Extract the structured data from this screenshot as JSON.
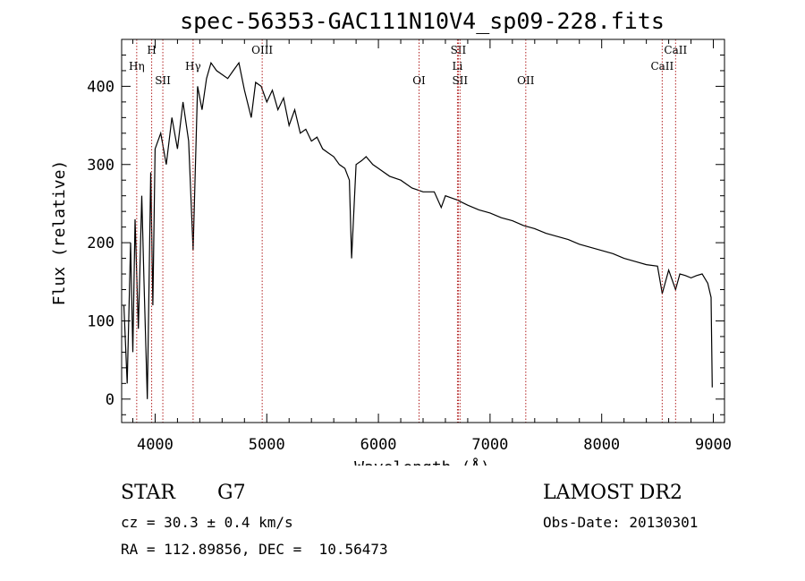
{
  "chart_data": {
    "type": "line",
    "title": "spec-56353-GAC111N10V4_sp09-228.fits",
    "xlabel": "Wavelength (Å)",
    "ylabel": "Flux (relative)",
    "xlim": [
      3700,
      9100
    ],
    "ylim": [
      -30,
      460
    ],
    "xticks": [
      4000,
      5000,
      6000,
      7000,
      8000,
      9000
    ],
    "yticks": [
      0,
      100,
      200,
      300,
      400
    ],
    "line_color": "#000000",
    "marker_color": "#b22222",
    "series": [
      {
        "x": [
          3720,
          3750,
          3780,
          3800,
          3820,
          3850,
          3880,
          3900,
          3930,
          3960,
          3980,
          4000,
          4050,
          4100,
          4150,
          4200,
          4250,
          4300,
          4340,
          4380,
          4420,
          4460,
          4500,
          4550,
          4600,
          4650,
          4700,
          4750,
          4800,
          4861,
          4900,
          4950,
          5000,
          5050,
          5100,
          5150,
          5200,
          5250,
          5300,
          5350,
          5400,
          5450,
          5500,
          5550,
          5600,
          5650,
          5700,
          5740,
          5760,
          5800,
          5850,
          5890,
          5950,
          6000,
          6100,
          6200,
          6300,
          6400,
          6500,
          6563,
          6600,
          6700,
          6800,
          6900,
          7000,
          7100,
          7200,
          7300,
          7400,
          7500,
          7600,
          7700,
          7800,
          7900,
          8000,
          8100,
          8200,
          8300,
          8400,
          8500,
          8542,
          8600,
          8662,
          8700,
          8750,
          8800,
          8850,
          8900,
          8950,
          8980,
          8990
        ],
        "y": [
          120,
          20,
          200,
          60,
          230,
          90,
          260,
          150,
          0,
          290,
          120,
          320,
          340,
          300,
          360,
          320,
          380,
          330,
          190,
          400,
          370,
          410,
          430,
          420,
          415,
          410,
          420,
          430,
          395,
          360,
          405,
          400,
          380,
          395,
          370,
          385,
          350,
          370,
          340,
          345,
          330,
          335,
          320,
          315,
          310,
          300,
          295,
          280,
          180,
          300,
          305,
          310,
          300,
          295,
          285,
          280,
          270,
          265,
          265,
          245,
          260,
          255,
          248,
          242,
          238,
          232,
          228,
          222,
          218,
          212,
          208,
          204,
          198,
          194,
          190,
          186,
          180,
          176,
          172,
          170,
          135,
          165,
          140,
          160,
          158,
          155,
          158,
          160,
          148,
          130,
          15
        ]
      }
    ],
    "line_markers": [
      {
        "label": "Hη",
        "wavelength": 3835,
        "row": 1
      },
      {
        "label": "H",
        "wavelength": 3969,
        "row": 0
      },
      {
        "label": "SII",
        "wavelength": 4069,
        "row": 2
      },
      {
        "label": "Hγ",
        "wavelength": 4340,
        "row": 1
      },
      {
        "label": "OIII",
        "wavelength": 4959,
        "row": 0
      },
      {
        "label": "OI",
        "wavelength": 6364,
        "row": 2
      },
      {
        "label": "SII",
        "wavelength": 6716,
        "row": 0
      },
      {
        "label": "Li",
        "wavelength": 6708,
        "row": 1
      },
      {
        "label": "SII",
        "wavelength": 6731,
        "row": 2
      },
      {
        "label": "OII",
        "wavelength": 7320,
        "row": 2
      },
      {
        "label": "CaII",
        "wavelength": 8542,
        "row": 1
      },
      {
        "label": "CaII",
        "wavelength": 8662,
        "row": 0
      }
    ]
  },
  "info": {
    "object_class": "STAR",
    "subclass": "G7",
    "survey": "LAMOST DR2",
    "redshift": "cz = 30.3 ± 0.4 km/s",
    "obs_date": "Obs-Date: 20130301",
    "coords": "RA = 112.89856, DEC =  10.56473"
  }
}
